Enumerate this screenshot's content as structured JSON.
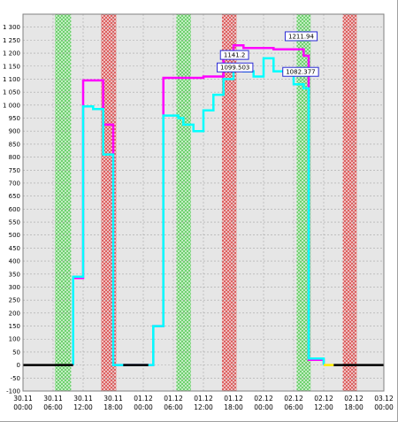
{
  "chart_data": {
    "type": "line",
    "title": "",
    "xlabel": "",
    "ylabel": "",
    "ylim": [
      -100,
      1350
    ],
    "y_ticks": [
      -100,
      -50,
      0,
      50,
      100,
      150,
      200,
      250,
      300,
      350,
      400,
      450,
      500,
      550,
      600,
      650,
      700,
      750,
      800,
      850,
      900,
      950,
      1000,
      1050,
      1100,
      1150,
      1200,
      1250,
      1300
    ],
    "y_tick_labels": [
      "-100",
      "-50",
      "0",
      "50",
      "100",
      "150",
      "200",
      "250",
      "300",
      "350",
      "400",
      "450",
      "500",
      "550",
      "600",
      "650",
      "700",
      "750",
      "800",
      "850",
      "900",
      "950",
      "1 000",
      "1 050",
      "1 100",
      "1 150",
      "1 200",
      "1 250",
      "1 300"
    ],
    "x_range_hours": [
      0,
      72
    ],
    "x_ticks": [
      {
        "h": 0,
        "date": "30.11",
        "time": "00:00"
      },
      {
        "h": 6,
        "date": "30.11",
        "time": "06:00"
      },
      {
        "h": 12,
        "date": "30.11",
        "time": "12:00"
      },
      {
        "h": 18,
        "date": "30.11",
        "time": "18:00"
      },
      {
        "h": 24,
        "date": "01.12",
        "time": "00:00"
      },
      {
        "h": 30,
        "date": "01.12",
        "time": "06:00"
      },
      {
        "h": 36,
        "date": "01.12",
        "time": "12:00"
      },
      {
        "h": 42,
        "date": "01.12",
        "time": "18:00"
      },
      {
        "h": 48,
        "date": "02.12",
        "time": "00:00"
      },
      {
        "h": 54,
        "date": "02.12",
        "time": "06:00"
      },
      {
        "h": 60,
        "date": "02.12",
        "time": "12:00"
      },
      {
        "h": 66,
        "date": "02.12",
        "time": "18:00"
      },
      {
        "h": 72,
        "date": "03.12",
        "time": "00:00"
      }
    ],
    "grid": true,
    "bands": [
      {
        "start": 6.4,
        "end": 9.6,
        "color": "#6fd36f"
      },
      {
        "start": 15.6,
        "end": 18.6,
        "color": "#e05a5a"
      },
      {
        "start": 30.6,
        "end": 33.5,
        "color": "#6fd36f"
      },
      {
        "start": 39.7,
        "end": 42.6,
        "color": "#e05a5a"
      },
      {
        "start": 54.6,
        "end": 57.4,
        "color": "#6fd36f"
      },
      {
        "start": 63.8,
        "end": 66.6,
        "color": "#e05a5a"
      }
    ],
    "series": [
      {
        "color": "#ff00ff",
        "points": [
          [
            10,
            0
          ],
          [
            10,
            335
          ],
          [
            12,
            335
          ],
          [
            12,
            1095
          ],
          [
            16,
            1095
          ],
          [
            16,
            925
          ],
          [
            18,
            925
          ],
          [
            18,
            0
          ],
          [
            26,
            0
          ],
          [
            26,
            150
          ],
          [
            28,
            150
          ],
          [
            28,
            1105
          ],
          [
            36,
            1105
          ],
          [
            36,
            1110
          ],
          [
            40,
            1110
          ],
          [
            40,
            1190
          ],
          [
            42,
            1190
          ],
          [
            42,
            1230
          ],
          [
            44,
            1230
          ],
          [
            44,
            1220
          ],
          [
            50,
            1220
          ],
          [
            50,
            1215
          ],
          [
            56,
            1215
          ],
          [
            56,
            1190
          ],
          [
            57,
            1190
          ],
          [
            57,
            20
          ],
          [
            60,
            20
          ],
          [
            60,
            0
          ]
        ]
      },
      {
        "color": "#00ffff",
        "points": [
          [
            10,
            0
          ],
          [
            10,
            340
          ],
          [
            12,
            340
          ],
          [
            12,
            995
          ],
          [
            14,
            995
          ],
          [
            14,
            985
          ],
          [
            16,
            985
          ],
          [
            16,
            810
          ],
          [
            18,
            810
          ],
          [
            18,
            0
          ],
          [
            26,
            0
          ],
          [
            26,
            150
          ],
          [
            28,
            150
          ],
          [
            28,
            960
          ],
          [
            31,
            960
          ],
          [
            31,
            950
          ],
          [
            32,
            950
          ],
          [
            32,
            925
          ],
          [
            34,
            925
          ],
          [
            34,
            900
          ],
          [
            36,
            900
          ],
          [
            36,
            980
          ],
          [
            38,
            980
          ],
          [
            38,
            1040
          ],
          [
            40,
            1040
          ],
          [
            40,
            1100
          ],
          [
            42,
            1100
          ],
          [
            42,
            1140
          ],
          [
            44,
            1140
          ],
          [
            44,
            1130
          ],
          [
            46,
            1130
          ],
          [
            46,
            1110
          ],
          [
            48,
            1110
          ],
          [
            48,
            1180
          ],
          [
            50,
            1180
          ],
          [
            50,
            1130
          ],
          [
            54,
            1130
          ],
          [
            54,
            1080
          ],
          [
            56,
            1080
          ],
          [
            56,
            1065
          ],
          [
            57,
            1065
          ],
          [
            57,
            25
          ],
          [
            60,
            25
          ],
          [
            60,
            0
          ]
        ]
      },
      {
        "color": "#000000",
        "points": [
          [
            0,
            0
          ],
          [
            10,
            0
          ]
        ]
      },
      {
        "color": "#000000",
        "points": [
          [
            20,
            0
          ],
          [
            25,
            0
          ]
        ]
      },
      {
        "color": "#ffee00",
        "points": [
          [
            60,
            0
          ],
          [
            62,
            0
          ]
        ]
      },
      {
        "color": "#000000",
        "points": [
          [
            62,
            0
          ],
          [
            72,
            0
          ]
        ]
      }
    ],
    "annotations": [
      {
        "text": "1211.94",
        "x": 55.5,
        "y": 1265,
        "color": "#2b2bd6"
      },
      {
        "text": "1141.2",
        "x": 42.2,
        "y": 1193,
        "color": "#2b2bd6"
      },
      {
        "text": "1099.503",
        "x": 42.3,
        "y": 1145,
        "color": "#2b2bd6"
      },
      {
        "text": "1082.377",
        "x": 55.4,
        "y": 1128,
        "color": "#2b2bd6"
      }
    ]
  }
}
